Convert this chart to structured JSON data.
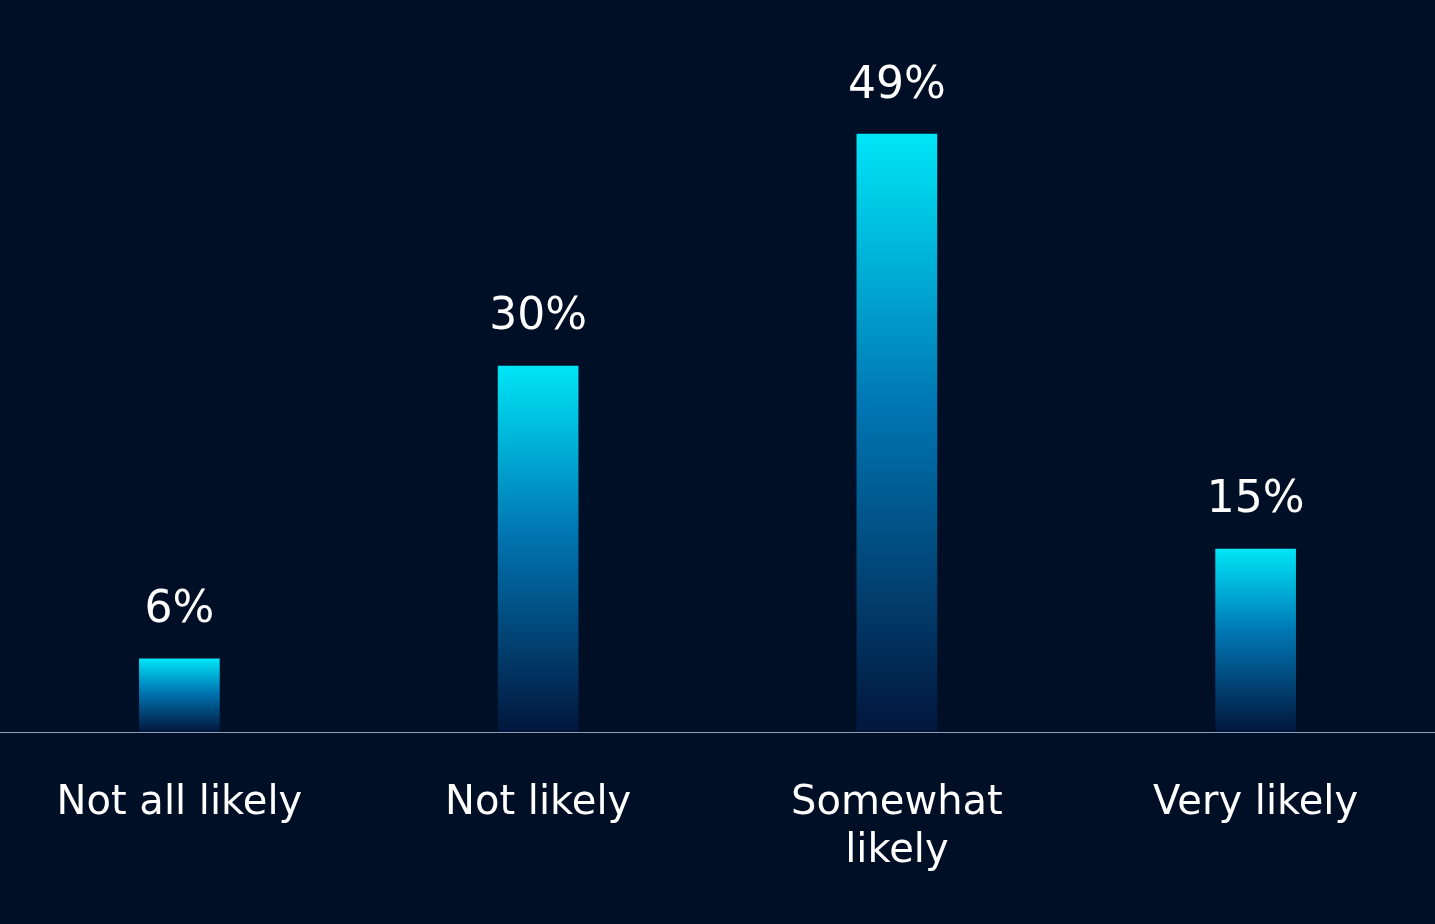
{
  "chart_data": {
    "type": "bar",
    "categories": [
      "Not all likely",
      "Not likely",
      "Somewhat likely",
      "Very likely"
    ],
    "values": [
      6,
      30,
      49,
      15
    ],
    "color": "#00e5f7",
    "data_labels": true,
    "value_labels": [
      "6%",
      "30%",
      "49%",
      "15%"
    ],
    "legend": false
  }
}
